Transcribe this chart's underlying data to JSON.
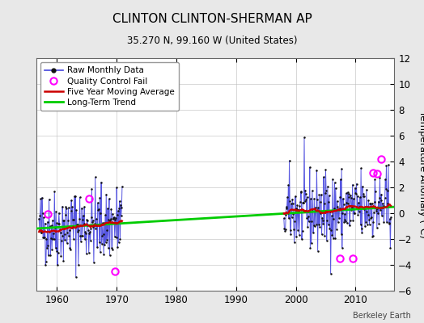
{
  "title": "CLINTON CLINTON-SHERMAN AP",
  "subtitle": "35.270 N, 99.160 W (United States)",
  "ylabel": "Temperature Anomaly (°C)",
  "attribution": "Berkeley Earth",
  "ylim": [
    -6,
    12
  ],
  "yticks": [
    -6,
    -4,
    -2,
    0,
    2,
    4,
    6,
    8,
    10,
    12
  ],
  "xlim": [
    1956.5,
    2016.5
  ],
  "xticks": [
    1960,
    1970,
    1980,
    1990,
    2000,
    2010
  ],
  "bg_color": "#e8e8e8",
  "plot_bg_color": "#ffffff",
  "raw_color": "#4444dd",
  "ma_color": "#cc0000",
  "trend_color": "#00cc00",
  "qc_color": "#ff00ff",
  "segment1_start": 1957,
  "segment1_end": 1970,
  "segment2_start": 1998,
  "segment2_end": 2015,
  "trend_slope": 0.028,
  "trend_intercept": -0.42,
  "noise_std": 1.5,
  "seed": 42,
  "qc_times": [
    1958.5,
    1965.4,
    1969.75,
    2007.4,
    2009.5,
    2012.9,
    2013.6,
    2014.25
  ],
  "qc_values": [
    -0.05,
    1.15,
    -4.5,
    -3.5,
    -3.5,
    3.1,
    3.05,
    4.2
  ]
}
